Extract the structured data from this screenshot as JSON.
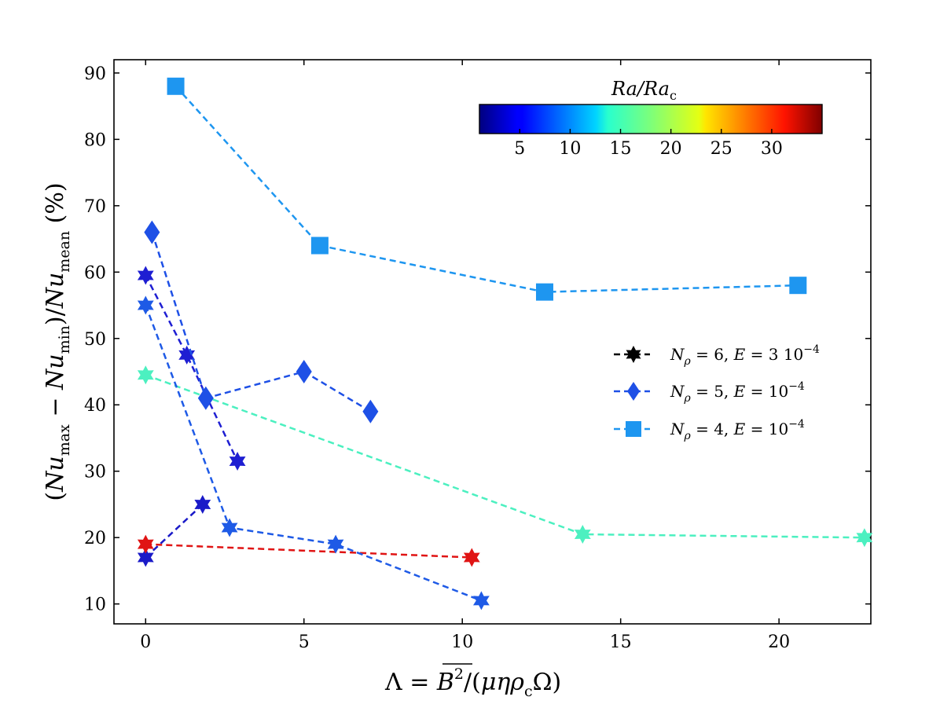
{
  "chart_data": {
    "type": "line",
    "xlabel": "Λ = B̅²/(μηρ_cΩ)",
    "ylabel": "(Nu_max − Nu_min)/Nu_mean (%)",
    "xlim": [
      -1,
      22.9
    ],
    "ylim": [
      7,
      92
    ],
    "x_ticks": [
      0,
      5,
      10,
      15,
      20
    ],
    "y_ticks": [
      10,
      20,
      30,
      40,
      50,
      60,
      70,
      80,
      90
    ],
    "grid": false,
    "legend_placement": "right",
    "legend": [
      {
        "label": "N_ρ = 6, E = 3 10⁻⁴",
        "marker": "star"
      },
      {
        "label": "N_ρ = 5, E = 10⁻⁴",
        "marker": "diamond"
      },
      {
        "label": "N_ρ = 4, E = 10⁻⁴",
        "marker": "square"
      }
    ],
    "colorbar": {
      "title": "Ra/Ra_c",
      "ticks": [
        5,
        10,
        15,
        20,
        25,
        30
      ],
      "range": [
        1,
        35
      ],
      "colormap": "jet",
      "placement": "top-right"
    },
    "series": [
      {
        "marker": "star",
        "color": "#1a1ac8",
        "x": [
          0.0,
          1.8
        ],
        "y": [
          17,
          25
        ]
      },
      {
        "marker": "star",
        "color": "#e01414",
        "x": [
          0.0,
          10.3
        ],
        "y": [
          19,
          17
        ]
      },
      {
        "marker": "star",
        "color": "#4cf0c0",
        "x": [
          0.0,
          13.8,
          22.7
        ],
        "y": [
          44.5,
          20.5,
          20
        ]
      },
      {
        "marker": "star",
        "color": "#1e1ed2",
        "x": [
          0.0,
          1.3,
          2.9
        ],
        "y": [
          59.5,
          47.5,
          31.5
        ]
      },
      {
        "marker": "star",
        "color": "#1e5ae6",
        "x": [
          0.0,
          2.65,
          6.0,
          10.6
        ],
        "y": [
          55,
          21.5,
          19,
          10.5
        ]
      },
      {
        "marker": "diamond",
        "color": "#1e50e6",
        "x": [
          0.2,
          1.9,
          5.0,
          7.1
        ],
        "y": [
          66,
          41,
          45,
          39
        ]
      },
      {
        "marker": "square",
        "color": "#1e96f0",
        "x": [
          0.95,
          5.5,
          12.6,
          20.6
        ],
        "y": [
          88,
          64,
          57,
          58
        ]
      }
    ]
  }
}
